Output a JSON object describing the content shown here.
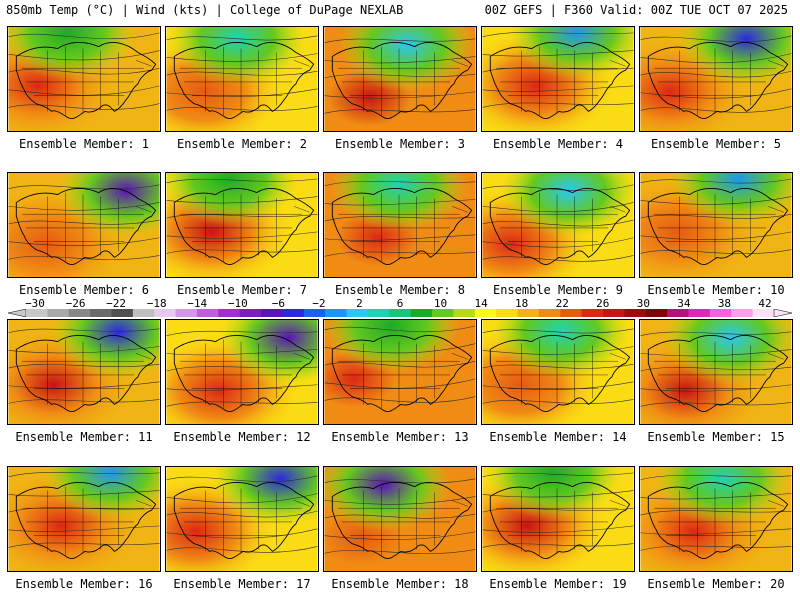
{
  "header": {
    "left": "850mb Temp (°C) | Wind (kts) | College of DuPage NEXLAB",
    "right": "00Z GEFS | F360 Valid: 00Z TUE OCT 07 2025"
  },
  "colorbar": {
    "labels": [
      "−30",
      "−26",
      "−22",
      "−18",
      "−14",
      "−10",
      "−6",
      "−2",
      "2",
      "6",
      "10",
      "14",
      "18",
      "22",
      "26",
      "30",
      "34",
      "38",
      "42"
    ],
    "colors": [
      "#c8c8c8",
      "#a8a8a8",
      "#888888",
      "#6a6a6a",
      "#505050",
      "#bfbfbf",
      "#e6c8f0",
      "#d496e6",
      "#c060d8",
      "#a030c8",
      "#7a1ec0",
      "#5a14b8",
      "#2c28e0",
      "#1e60f0",
      "#1e96f0",
      "#28c8f0",
      "#1ed2b4",
      "#14c878",
      "#1eaa28",
      "#64c81e",
      "#b4dc14",
      "#fafa14",
      "#fadc14",
      "#f0b414",
      "#f08c14",
      "#e65a14",
      "#dc2814",
      "#c81414",
      "#a00a0a",
      "#780a0a",
      "#b4147a",
      "#dc28b4",
      "#f064dc",
      "#f8a0ec",
      "#fce0f8"
    ]
  },
  "panels": [
    {
      "caption": "Ensemble Member: 1"
    },
    {
      "caption": "Ensemble Member: 2"
    },
    {
      "caption": "Ensemble Member: 3"
    },
    {
      "caption": "Ensemble Member: 4"
    },
    {
      "caption": "Ensemble Member: 5"
    },
    {
      "caption": "Ensemble Member: 6"
    },
    {
      "caption": "Ensemble Member: 7"
    },
    {
      "caption": "Ensemble Member: 8"
    },
    {
      "caption": "Ensemble Member: 9"
    },
    {
      "caption": "Ensemble Member: 10"
    },
    {
      "caption": "Ensemble Member: 11"
    },
    {
      "caption": "Ensemble Member: 12"
    },
    {
      "caption": "Ensemble Member: 13"
    },
    {
      "caption": "Ensemble Member: 14"
    },
    {
      "caption": "Ensemble Member: 15"
    },
    {
      "caption": "Ensemble Member: 16"
    },
    {
      "caption": "Ensemble Member: 17"
    },
    {
      "caption": "Ensemble Member: 18"
    },
    {
      "caption": "Ensemble Member: 19"
    },
    {
      "caption": "Ensemble Member: 20"
    }
  ]
}
